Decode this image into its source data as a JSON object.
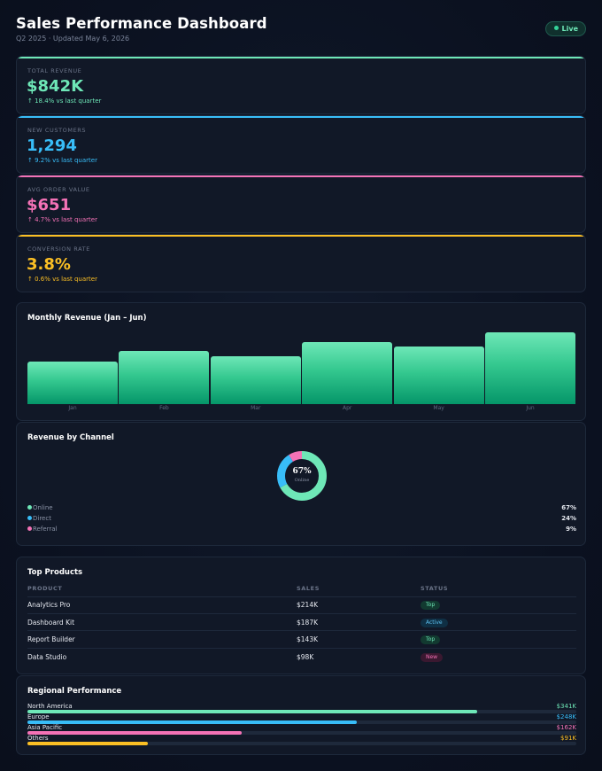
{
  "header": {
    "title": "Sales Performance Dashboard",
    "subtitle": "Q2 2025 · Updated May 6, 2026",
    "live_label": "Live"
  },
  "kpis": [
    {
      "label": "TOTAL REVENUE",
      "value": "$842K",
      "delta": "↑ 18.4% vs last quarter",
      "color": "#6ee7b7",
      "line_color": "#6ee7b7"
    },
    {
      "label": "NEW CUSTOMERS",
      "value": "1,294",
      "delta": "↑ 9.2% vs last quarter",
      "color": "#38bdf8",
      "line_color": "#38bdf8"
    },
    {
      "label": "AVG ORDER VALUE",
      "value": "$651",
      "delta": "↑ 4.7% vs last quarter",
      "color": "#f472b6",
      "line_color": "#f472b6"
    },
    {
      "label": "CONVERSION RATE",
      "value": "3.8%",
      "delta": "↑ 0.6% vs last quarter",
      "color": "#fbbf24",
      "line_color": "#fbbf24"
    }
  ],
  "monthly": {
    "title": "Monthly Revenue (Jan – Jun)",
    "chart_data": {
      "type": "bar",
      "categories": [
        "Jan",
        "Feb",
        "Mar",
        "Apr",
        "May",
        "Jun"
      ],
      "values": [
        118,
        146,
        132,
        172,
        158,
        198
      ],
      "ylim": [
        0,
        210
      ]
    }
  },
  "channel": {
    "title": "Revenue by Channel",
    "center_value": "67%",
    "center_label": "Online",
    "chart_data": {
      "type": "pie",
      "categories": [
        "Online",
        "Direct",
        "Referral"
      ],
      "values": [
        67,
        24,
        9
      ],
      "colors": [
        "#6ee7b7",
        "#38bdf8",
        "#f472b6"
      ]
    },
    "legend": [
      {
        "name": "Online",
        "value": "67%",
        "color": "#6ee7b7"
      },
      {
        "name": "Direct",
        "value": "24%",
        "color": "#38bdf8"
      },
      {
        "name": "Referral",
        "value": "9%",
        "color": "#f472b6"
      }
    ]
  },
  "products": {
    "title": "Top Products",
    "columns": [
      "PRODUCT",
      "SALES",
      "STATUS"
    ],
    "rows": [
      {
        "name": "Analytics Pro",
        "sales": "$214K",
        "status": "Top",
        "kind": "top"
      },
      {
        "name": "Dashboard Kit",
        "sales": "$187K",
        "status": "Active",
        "kind": "active"
      },
      {
        "name": "Report Builder",
        "sales": "$143K",
        "status": "Top",
        "kind": "top"
      },
      {
        "name": "Data Studio",
        "sales": "$98K",
        "status": "New",
        "kind": "new"
      }
    ]
  },
  "regional": {
    "title": "Regional Performance",
    "regions": [
      {
        "name": "North America",
        "value": "$341K",
        "share": 0.82,
        "color": "#6ee7b7"
      },
      {
        "name": "Europe",
        "value": "$248K",
        "share": 0.6,
        "color": "#38bdf8"
      },
      {
        "name": "Asia Pacific",
        "value": "$162K",
        "share": 0.39,
        "color": "#f472b6"
      },
      {
        "name": "Others",
        "value": "$91K",
        "share": 0.22,
        "color": "#fbbf24"
      }
    ]
  }
}
